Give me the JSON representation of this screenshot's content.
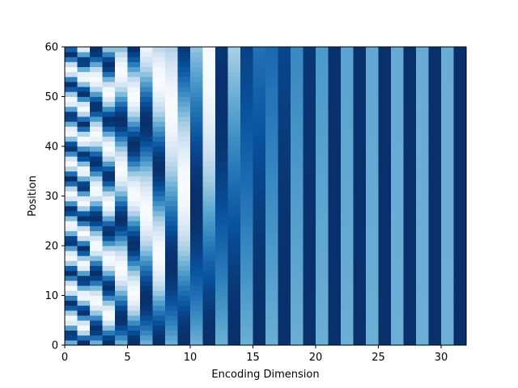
{
  "chart_data": {
    "type": "heatmap",
    "title": "",
    "xlabel": "Encoding Dimension",
    "ylabel": "Position",
    "xlim": [
      0,
      32
    ],
    "ylim": [
      0,
      60
    ],
    "x_ticks": [
      0,
      5,
      10,
      15,
      20,
      25,
      30
    ],
    "y_ticks": [
      0,
      10,
      20,
      30,
      40,
      50,
      60
    ],
    "colormap": "Blues",
    "grid": false,
    "legend": "none",
    "n_dimensions": 32,
    "n_positions": 60,
    "value_range": [
      -1,
      1
    ],
    "encoding": "sinusoidal positional encoding: even dims sin(pos / 10000^(i/32)), odd dims cos(pos / 10000^((i-1)/32))"
  },
  "colors": {
    "blues_low": "#f7fbff",
    "blues_high": "#08306b"
  }
}
